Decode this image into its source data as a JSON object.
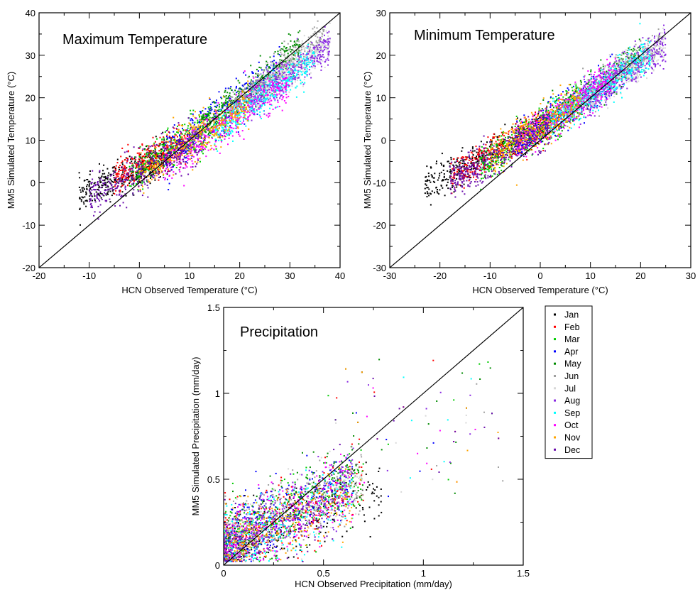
{
  "chart_data": [
    {
      "type": "scatter",
      "title": "Maximum Temperature",
      "xlabel": "HCN Observed Temperature (°C)",
      "ylabel": "MM5 Simulated Temperature (°C)",
      "xlim": [
        -20,
        40
      ],
      "ylim": [
        -20,
        40
      ],
      "xticks": [
        -20,
        -10,
        0,
        10,
        20,
        30,
        40
      ],
      "yticks": [
        -20,
        -10,
        0,
        10,
        20,
        30,
        40
      ],
      "reference_line": "1:1",
      "series": [
        {
          "name": "Jan",
          "x_range": [
            -12,
            6
          ],
          "slope": 0.55,
          "intercept": 3.5,
          "spread": 2.0
        },
        {
          "name": "Feb",
          "x_range": [
            -5,
            10
          ],
          "slope": 0.6,
          "intercept": 4.0,
          "spread": 2.0
        },
        {
          "name": "Mar",
          "x_range": [
            -2,
            18
          ],
          "slope": 0.75,
          "intercept": 3.0,
          "spread": 2.5
        },
        {
          "name": "Apr",
          "x_range": [
            5,
            28
          ],
          "slope": 0.9,
          "intercept": 1.5,
          "spread": 2.5
        },
        {
          "name": "May",
          "x_range": [
            12,
            32
          ],
          "slope": 0.95,
          "intercept": 1.0,
          "spread": 2.2
        },
        {
          "name": "Jun",
          "x_range": [
            18,
            37
          ],
          "slope": 0.9,
          "intercept": 1.0,
          "spread": 2.0
        },
        {
          "name": "Jul",
          "x_range": [
            22,
            38
          ],
          "slope": 0.85,
          "intercept": 1.0,
          "spread": 2.0
        },
        {
          "name": "Aug",
          "x_range": [
            22,
            38
          ],
          "slope": 0.85,
          "intercept": 0.0,
          "spread": 2.0
        },
        {
          "name": "Sep",
          "x_range": [
            15,
            35
          ],
          "slope": 0.9,
          "intercept": -2.0,
          "spread": 2.0
        },
        {
          "name": "Oct",
          "x_range": [
            5,
            30
          ],
          "slope": 0.8,
          "intercept": 0.0,
          "spread": 2.5
        },
        {
          "name": "Nov",
          "x_range": [
            0,
            22
          ],
          "slope": 0.75,
          "intercept": 2.0,
          "spread": 2.5
        },
        {
          "name": "Dec",
          "x_range": [
            -10,
            12
          ],
          "slope": 0.6,
          "intercept": 2.5,
          "spread": 2.5
        }
      ]
    },
    {
      "type": "scatter",
      "title": "Minimum Temperature",
      "xlabel": "HCN Observed Temperature (°C)",
      "ylabel": "MM5 Simulated Temperature (°C)",
      "xlim": [
        -30,
        30
      ],
      "ylim": [
        -30,
        30
      ],
      "xticks": [
        -30,
        -20,
        -10,
        0,
        10,
        20,
        30
      ],
      "yticks": [
        -30,
        -20,
        -10,
        0,
        10,
        20,
        30
      ],
      "reference_line": "1:1",
      "series": [
        {
          "name": "Jan",
          "x_range": [
            -23,
            0
          ],
          "slope": 0.6,
          "intercept": 3.0,
          "spread": 2.0
        },
        {
          "name": "Feb",
          "x_range": [
            -18,
            2
          ],
          "slope": 0.65,
          "intercept": 3.0,
          "spread": 2.0
        },
        {
          "name": "Mar",
          "x_range": [
            -12,
            8
          ],
          "slope": 0.75,
          "intercept": 3.0,
          "spread": 2.2
        },
        {
          "name": "Apr",
          "x_range": [
            -5,
            15
          ],
          "slope": 0.8,
          "intercept": 3.0,
          "spread": 2.2
        },
        {
          "name": "May",
          "x_range": [
            0,
            20
          ],
          "slope": 0.85,
          "intercept": 3.0,
          "spread": 2.0
        },
        {
          "name": "Jun",
          "x_range": [
            5,
            24
          ],
          "slope": 0.85,
          "intercept": 2.5,
          "spread": 2.0
        },
        {
          "name": "Jul",
          "x_range": [
            8,
            25
          ],
          "slope": 0.85,
          "intercept": 2.0,
          "spread": 2.0
        },
        {
          "name": "Aug",
          "x_range": [
            8,
            25
          ],
          "slope": 0.85,
          "intercept": 1.5,
          "spread": 2.0
        },
        {
          "name": "Sep",
          "x_range": [
            2,
            22
          ],
          "slope": 0.85,
          "intercept": 2.0,
          "spread": 2.0
        },
        {
          "name": "Oct",
          "x_range": [
            -5,
            15
          ],
          "slope": 0.8,
          "intercept": 3.0,
          "spread": 2.2
        },
        {
          "name": "Nov",
          "x_range": [
            -10,
            8
          ],
          "slope": 0.75,
          "intercept": 3.5,
          "spread": 2.2
        },
        {
          "name": "Dec",
          "x_range": [
            -18,
            2
          ],
          "slope": 0.65,
          "intercept": 2.0,
          "spread": 2.2
        }
      ]
    },
    {
      "type": "scatter",
      "title": "Precipitation",
      "xlabel": "HCN Observed Precipitation (mm/day)",
      "ylabel": "MM5 Simulated Precipitation (mm/day)",
      "xlim": [
        0,
        1.5
      ],
      "ylim": [
        0,
        1.5
      ],
      "xticks": [
        0,
        0.5,
        1,
        1.5
      ],
      "yticks": [
        0,
        0.5,
        1,
        1.5
      ],
      "reference_line": "1:1",
      "series": [
        {
          "name": "Jan",
          "x_range": [
            0.0,
            0.8
          ],
          "slope": 0.45,
          "intercept": 0.1,
          "spread": 0.1
        },
        {
          "name": "Feb",
          "x_range": [
            0.0,
            0.7
          ],
          "slope": 0.5,
          "intercept": 0.12,
          "spread": 0.1
        },
        {
          "name": "Mar",
          "x_range": [
            0.0,
            0.7
          ],
          "slope": 0.55,
          "intercept": 0.12,
          "spread": 0.1
        },
        {
          "name": "Apr",
          "x_range": [
            0.0,
            0.65
          ],
          "slope": 0.6,
          "intercept": 0.13,
          "spread": 0.1
        },
        {
          "name": "May",
          "x_range": [
            0.0,
            0.7
          ],
          "slope": 0.6,
          "intercept": 0.13,
          "spread": 0.1
        },
        {
          "name": "Jun",
          "x_range": [
            0.0,
            0.7
          ],
          "slope": 0.55,
          "intercept": 0.12,
          "spread": 0.1
        },
        {
          "name": "Jul",
          "x_range": [
            0.0,
            0.7
          ],
          "slope": 0.5,
          "intercept": 0.12,
          "spread": 0.1
        },
        {
          "name": "Aug",
          "x_range": [
            0.0,
            0.65
          ],
          "slope": 0.6,
          "intercept": 0.1,
          "spread": 0.1
        },
        {
          "name": "Sep",
          "x_range": [
            0.0,
            0.65
          ],
          "slope": 0.5,
          "intercept": 0.1,
          "spread": 0.1
        },
        {
          "name": "Oct",
          "x_range": [
            0.0,
            0.65
          ],
          "slope": 0.5,
          "intercept": 0.1,
          "spread": 0.1
        },
        {
          "name": "Nov",
          "x_range": [
            0.0,
            0.65
          ],
          "slope": 0.5,
          "intercept": 0.1,
          "spread": 0.1
        },
        {
          "name": "Dec",
          "x_range": [
            0.0,
            0.6
          ],
          "slope": 0.6,
          "intercept": 0.08,
          "spread": 0.1
        }
      ]
    }
  ],
  "legend": {
    "items": [
      {
        "label": "Jan",
        "color": "#000000"
      },
      {
        "label": "Feb",
        "color": "#ff0000"
      },
      {
        "label": "Mar",
        "color": "#00cc00"
      },
      {
        "label": "Apr",
        "color": "#0000ff"
      },
      {
        "label": "May",
        "color": "#008b00"
      },
      {
        "label": "Jun",
        "color": "#a0a0a0"
      },
      {
        "label": "Jul",
        "color": "#d8d8d8"
      },
      {
        "label": "Aug",
        "color": "#8a2be2"
      },
      {
        "label": "Sep",
        "color": "#00ffff"
      },
      {
        "label": "Oct",
        "color": "#ff00ff"
      },
      {
        "label": "Nov",
        "color": "#ffa500"
      },
      {
        "label": "Dec",
        "color": "#6a0dad"
      }
    ]
  }
}
